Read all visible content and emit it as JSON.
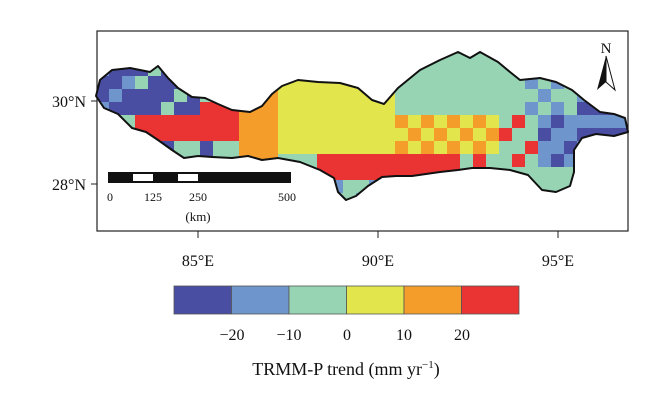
{
  "map": {
    "lat_labels": [
      "30°N",
      "28°N"
    ],
    "lon_labels": [
      "85°E",
      "90°E",
      "95°E"
    ],
    "north_arrow": {
      "letter": "N",
      "icon": "north-arrow-icon"
    },
    "scalebar": {
      "ticks": [
        "0",
        "125",
        "250",
        "500"
      ],
      "unit": "(km)"
    }
  },
  "legend": {
    "colors": [
      "#4a4ea3",
      "#6f96cc",
      "#96d4b4",
      "#e3e54d",
      "#f59d2a",
      "#ea3333"
    ],
    "tick_labels": [
      "−20",
      "−10",
      "0",
      "10",
      "20"
    ],
    "title_main": "TRMM-P trend (mm yr",
    "title_sup": "−1",
    "title_end": ")"
  }
}
